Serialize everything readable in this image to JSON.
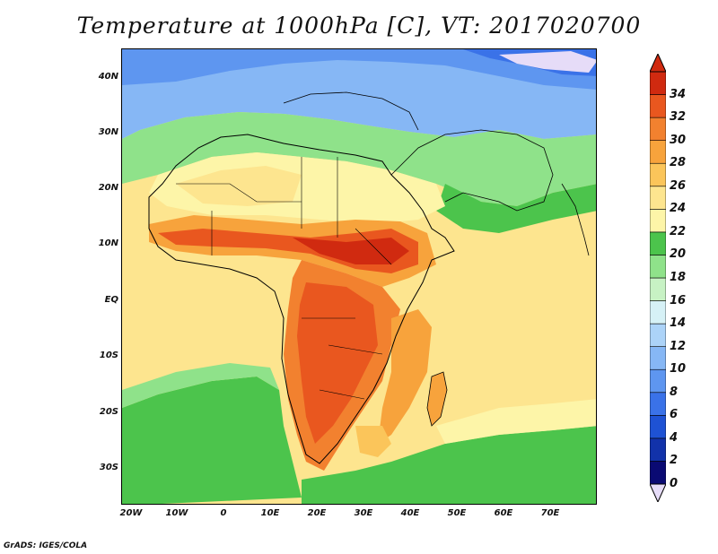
{
  "title": "Temperature at 1000hPa [C], VT: 2017020700",
  "footer": "GrADS: IGES/COLA",
  "lat_labels": [
    "40N",
    "30N",
    "20N",
    "10N",
    "EQ",
    "10S",
    "20S",
    "30S"
  ],
  "lon_labels": [
    "20W",
    "10W",
    "0",
    "10E",
    "20E",
    "30E",
    "40E",
    "50E",
    "60E",
    "70E"
  ],
  "colorbar": {
    "levels": [
      "0",
      "2",
      "4",
      "6",
      "8",
      "10",
      "12",
      "14",
      "16",
      "18",
      "20",
      "22",
      "24",
      "26",
      "28",
      "30",
      "32",
      "34"
    ],
    "colors": [
      "#0a0a73",
      "#1232aa",
      "#1e52d4",
      "#3a72e8",
      "#5e96f0",
      "#86b7f5",
      "#acd3f8",
      "#d6f1f6",
      "#c7f2c4",
      "#8fe28a",
      "#4cc44c",
      "#fdf5a8",
      "#fde58f",
      "#fbc55a",
      "#f7a33c",
      "#f2812f",
      "#e9571f",
      "#d02a10"
    ],
    "under_color": "#e6dcf8",
    "over_color": "#d02a10"
  },
  "map_colors": {
    "cold_north": "#5e96f0",
    "cool": "#acd3f8",
    "green": "#4cc44c",
    "light_green": "#8fe28a",
    "yellow": "#fde58f",
    "orange": "#f7a33c",
    "red": "#e9571f",
    "hot": "#d02a10"
  }
}
